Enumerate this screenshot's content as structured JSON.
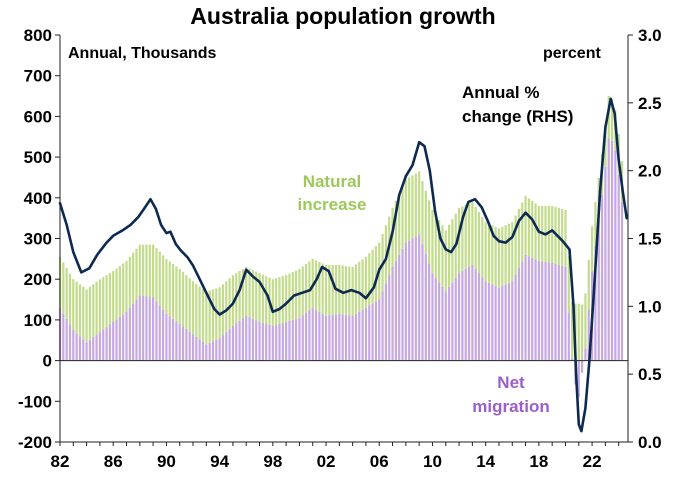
{
  "chart_data": {
    "type": "bar",
    "title": "Australia population growth",
    "left_axis_unit": "Annual, Thousands",
    "right_axis_unit": "percent",
    "ylim_left": [
      -200,
      800
    ],
    "ylim_right": [
      0.0,
      3.0
    ],
    "yticks_left": [
      "800",
      "700",
      "600",
      "500",
      "400",
      "300",
      "200",
      "100",
      "0",
      "-100",
      "-200"
    ],
    "yticks_right": [
      "3.0",
      "2.5",
      "2.0",
      "1.5",
      "1.0",
      "0.5",
      "0.0"
    ],
    "xticks": [
      "82",
      "86",
      "90",
      "94",
      "98",
      "02",
      "06",
      "10",
      "14",
      "18",
      "22"
    ],
    "xtick_years": [
      1982,
      1986,
      1990,
      1994,
      1998,
      2002,
      2006,
      2010,
      2014,
      2018,
      2022
    ],
    "xlim": [
      1982,
      2024.7
    ],
    "grid": false,
    "colors": {
      "net_migration": "#c6a8e2",
      "natural_increase": "#c2dc8c",
      "line": "#0e2a50"
    },
    "series": [
      {
        "name": "Net migration",
        "kind": "stacked-bar-bottom",
        "points": [
          [
            1982,
            130
          ],
          [
            1983,
            75
          ],
          [
            1984,
            45
          ],
          [
            1985,
            70
          ],
          [
            1986,
            95
          ],
          [
            1987,
            120
          ],
          [
            1988,
            160
          ],
          [
            1989,
            155
          ],
          [
            1990,
            115
          ],
          [
            1991,
            90
          ],
          [
            1992,
            65
          ],
          [
            1993,
            40
          ],
          [
            1994,
            55
          ],
          [
            1995,
            85
          ],
          [
            1996,
            110
          ],
          [
            1997,
            95
          ],
          [
            1998,
            85
          ],
          [
            1999,
            95
          ],
          [
            2000,
            105
          ],
          [
            2001,
            130
          ],
          [
            2002,
            110
          ],
          [
            2003,
            115
          ],
          [
            2004,
            110
          ],
          [
            2005,
            130
          ],
          [
            2006,
            150
          ],
          [
            2007,
            230
          ],
          [
            2008,
            290
          ],
          [
            2009,
            310
          ],
          [
            2010,
            215
          ],
          [
            2011,
            170
          ],
          [
            2012,
            215
          ],
          [
            2013,
            235
          ],
          [
            2014,
            195
          ],
          [
            2015,
            180
          ],
          [
            2016,
            195
          ],
          [
            2017,
            260
          ],
          [
            2018,
            245
          ],
          [
            2019,
            240
          ],
          [
            2020,
            230
          ],
          [
            2020.6,
            -40
          ],
          [
            2021,
            -90
          ],
          [
            2021.5,
            30
          ],
          [
            2022,
            220
          ],
          [
            2022.8,
            420
          ],
          [
            2023.3,
            560
          ],
          [
            2023.8,
            510
          ],
          [
            2024.4,
            350
          ]
        ]
      },
      {
        "name": "Natural increase",
        "kind": "stacked-bar-top",
        "points": [
          [
            1982,
            125
          ],
          [
            1983,
            125
          ],
          [
            1984,
            130
          ],
          [
            1985,
            130
          ],
          [
            1986,
            125
          ],
          [
            1987,
            125
          ],
          [
            1988,
            125
          ],
          [
            1989,
            130
          ],
          [
            1990,
            135
          ],
          [
            1991,
            135
          ],
          [
            1992,
            130
          ],
          [
            1993,
            130
          ],
          [
            1994,
            125
          ],
          [
            1995,
            125
          ],
          [
            1996,
            120
          ],
          [
            1997,
            120
          ],
          [
            1998,
            115
          ],
          [
            1999,
            115
          ],
          [
            2000,
            120
          ],
          [
            2001,
            120
          ],
          [
            2002,
            125
          ],
          [
            2003,
            120
          ],
          [
            2004,
            120
          ],
          [
            2005,
            125
          ],
          [
            2006,
            140
          ],
          [
            2007,
            145
          ],
          [
            2008,
            155
          ],
          [
            2009,
            155
          ],
          [
            2010,
            155
          ],
          [
            2011,
            150
          ],
          [
            2012,
            160
          ],
          [
            2013,
            155
          ],
          [
            2014,
            145
          ],
          [
            2015,
            145
          ],
          [
            2016,
            145
          ],
          [
            2017,
            145
          ],
          [
            2018,
            135
          ],
          [
            2019,
            140
          ],
          [
            2020,
            140
          ],
          [
            2020.6,
            140
          ],
          [
            2021,
            140
          ],
          [
            2021.5,
            135
          ],
          [
            2022,
            110
          ],
          [
            2022.8,
            100
          ],
          [
            2023.3,
            105
          ],
          [
            2023.8,
            100
          ],
          [
            2024.4,
            100
          ]
        ]
      },
      {
        "name": "Annual % change (RHS)",
        "kind": "line-rhs",
        "points": [
          [
            1982,
            1.76
          ],
          [
            1982.5,
            1.6
          ],
          [
            1983,
            1.4
          ],
          [
            1983.6,
            1.25
          ],
          [
            1984.2,
            1.28
          ],
          [
            1984.8,
            1.38
          ],
          [
            1985.5,
            1.47
          ],
          [
            1986,
            1.52
          ],
          [
            1986.7,
            1.56
          ],
          [
            1987.3,
            1.6
          ],
          [
            1987.9,
            1.66
          ],
          [
            1988.4,
            1.73
          ],
          [
            1988.8,
            1.79
          ],
          [
            1989.2,
            1.72
          ],
          [
            1989.6,
            1.6
          ],
          [
            1990,
            1.54
          ],
          [
            1990.3,
            1.55
          ],
          [
            1990.7,
            1.46
          ],
          [
            1991.1,
            1.41
          ],
          [
            1991.6,
            1.36
          ],
          [
            1992,
            1.3
          ],
          [
            1992.5,
            1.2
          ],
          [
            1993,
            1.1
          ],
          [
            1993.6,
            0.98
          ],
          [
            1994,
            0.94
          ],
          [
            1994.5,
            0.97
          ],
          [
            1995,
            1.02
          ],
          [
            1995.5,
            1.12
          ],
          [
            1996,
            1.27
          ],
          [
            1996.5,
            1.22
          ],
          [
            1997,
            1.18
          ],
          [
            1997.6,
            1.08
          ],
          [
            1998,
            0.96
          ],
          [
            1998.5,
            0.98
          ],
          [
            1999,
            1.02
          ],
          [
            1999.6,
            1.08
          ],
          [
            2000.2,
            1.1
          ],
          [
            2000.8,
            1.12
          ],
          [
            2001.3,
            1.2
          ],
          [
            2001.7,
            1.29
          ],
          [
            2002.2,
            1.26
          ],
          [
            2002.7,
            1.13
          ],
          [
            2003.3,
            1.1
          ],
          [
            2003.9,
            1.12
          ],
          [
            2004.5,
            1.1
          ],
          [
            2005,
            1.06
          ],
          [
            2005.6,
            1.14
          ],
          [
            2006,
            1.27
          ],
          [
            2006.5,
            1.35
          ],
          [
            2007,
            1.55
          ],
          [
            2007.5,
            1.82
          ],
          [
            2008,
            1.96
          ],
          [
            2008.5,
            2.04
          ],
          [
            2009,
            2.21
          ],
          [
            2009.4,
            2.18
          ],
          [
            2009.8,
            2.0
          ],
          [
            2010.2,
            1.7
          ],
          [
            2010.6,
            1.5
          ],
          [
            2011,
            1.42
          ],
          [
            2011.4,
            1.4
          ],
          [
            2011.8,
            1.46
          ],
          [
            2012.3,
            1.66
          ],
          [
            2012.7,
            1.77
          ],
          [
            2013.2,
            1.79
          ],
          [
            2013.7,
            1.73
          ],
          [
            2014.2,
            1.62
          ],
          [
            2014.6,
            1.52
          ],
          [
            2015,
            1.48
          ],
          [
            2015.5,
            1.47
          ],
          [
            2016,
            1.51
          ],
          [
            2016.5,
            1.63
          ],
          [
            2017,
            1.69
          ],
          [
            2017.5,
            1.64
          ],
          [
            2018,
            1.55
          ],
          [
            2018.5,
            1.53
          ],
          [
            2019,
            1.56
          ],
          [
            2019.4,
            1.52
          ],
          [
            2019.8,
            1.48
          ],
          [
            2020.3,
            1.42
          ],
          [
            2020.6,
            1.0
          ],
          [
            2020.8,
            0.5
          ],
          [
            2021,
            0.13
          ],
          [
            2021.2,
            0.08
          ],
          [
            2021.5,
            0.25
          ],
          [
            2021.8,
            0.6
          ],
          [
            2022.2,
            1.2
          ],
          [
            2022.6,
            1.85
          ],
          [
            2023,
            2.32
          ],
          [
            2023.4,
            2.53
          ],
          [
            2023.7,
            2.42
          ],
          [
            2024,
            2.08
          ],
          [
            2024.3,
            1.85
          ],
          [
            2024.6,
            1.65
          ]
        ]
      }
    ],
    "annotations": {
      "natural_increase": [
        "Natural",
        "increase"
      ],
      "net_migration": [
        "Net",
        "migration"
      ],
      "line": [
        "Annual %",
        "change (RHS)"
      ]
    }
  }
}
